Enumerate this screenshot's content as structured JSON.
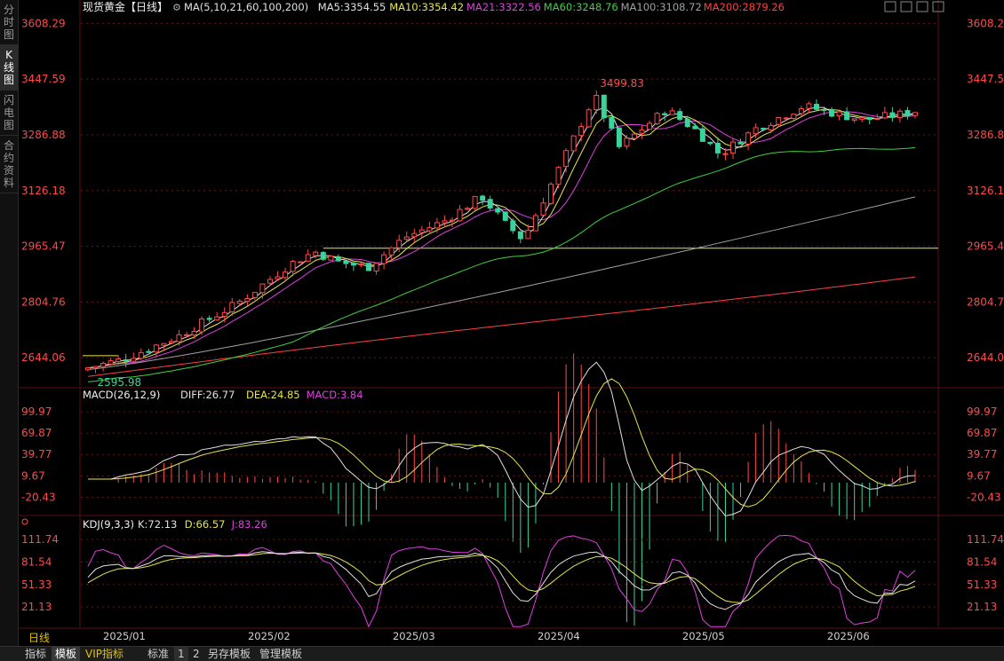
{
  "sidebar": {
    "tabs": [
      {
        "label": "分时图",
        "chars": [
          "分",
          "时",
          "图"
        ],
        "active": false
      },
      {
        "label": "K线图",
        "chars": [
          "K",
          "线",
          "图"
        ],
        "active": true
      },
      {
        "label": "闪电图",
        "chars": [
          "闪",
          "电",
          "图"
        ],
        "active": false
      },
      {
        "label": "合约资料",
        "chars": [
          "合",
          "约",
          "资",
          "料"
        ],
        "active": false
      }
    ]
  },
  "header": {
    "title": "现货黄金【日线】",
    "settings_icon": "settings-icon",
    "legend": [
      {
        "text": "MA(5,10,21,60,100,200)",
        "color": "#e0e0e0"
      },
      {
        "text": "MA5:3354.55",
        "color": "#e0e0e0"
      },
      {
        "text": "MA10:3354.42",
        "color": "#e6e64d"
      },
      {
        "text": "MA21:3322.56",
        "color": "#e040e0"
      },
      {
        "text": "MA60:3248.76",
        "color": "#40d040"
      },
      {
        "text": "MA100:3108.72",
        "color": "#a0a0a0"
      },
      {
        "text": "MA200:2879.26",
        "color": "#ff4040"
      }
    ],
    "window_buttons": [
      "grid-icon",
      "restore-icon",
      "maximize-icon",
      "window-icon"
    ]
  },
  "colors": {
    "up": "#ff4a4a",
    "down": "#39d39b",
    "grid": "#6e1414",
    "axis_text": "#ff4a4a",
    "hline": "#e6e64d"
  },
  "chart_data": [
    {
      "type": "candlestick",
      "title": "现货黄金【日线】",
      "y_ticks": [
        "3608.29",
        "3447.59",
        "3286.88",
        "3126.18",
        "2965.47",
        "2804.76",
        "2644.06"
      ],
      "ylim": [
        2560,
        3640
      ],
      "x_ticks": [
        "2025/01",
        "2025/02",
        "2025/03",
        "2025/04",
        "2025/05",
        "2025/06"
      ],
      "annotations": {
        "max": "3499.83",
        "min": "2595.98"
      },
      "horizontal_line": 2960,
      "grid": true,
      "series": [
        {
          "name": "MA5",
          "last": 3354.55,
          "color": "#e0e0e0"
        },
        {
          "name": "MA10",
          "last": 3354.42,
          "color": "#e6e64d"
        },
        {
          "name": "MA21",
          "last": 3322.56,
          "color": "#e040e0"
        },
        {
          "name": "MA60",
          "last": 3248.76,
          "color": "#40d040"
        },
        {
          "name": "MA100",
          "last": 3108.72,
          "color": "#a0a0a0"
        },
        {
          "name": "MA200",
          "last": 2879.26,
          "color": "#ff4040"
        }
      ]
    },
    {
      "type": "line",
      "title": "MACD(26,12,9)",
      "legend": [
        {
          "text": "DIFF:26.77",
          "color": "#e0e0e0"
        },
        {
          "text": "DEA:24.85",
          "color": "#e6e64d"
        },
        {
          "text": "MACD:3.84",
          "color": "#e040e0"
        }
      ],
      "y_ticks": [
        "99.97",
        "69.87",
        "39.77",
        "9.67",
        "-20.43"
      ],
      "ylim": [
        -45,
        115
      ]
    },
    {
      "type": "line",
      "title": "KDJ(9,3,3)",
      "legend": [
        {
          "text": "K:72.13",
          "color": "#e0e0e0"
        },
        {
          "text": "D:66.57",
          "color": "#e6e64d"
        },
        {
          "text": "J:83.26",
          "color": "#e040e0"
        }
      ],
      "y_ticks": [
        "111.74",
        "81.54",
        "51.33",
        "21.13"
      ],
      "ylim": [
        -6,
        126
      ]
    }
  ],
  "bottom": {
    "period": "日线",
    "buttons": [
      {
        "label": "指标",
        "active": false
      },
      {
        "label": "模板",
        "active": true
      },
      {
        "label": "VIP指标",
        "active": false,
        "vip": true
      },
      {
        "label": "标准",
        "active": false
      },
      {
        "label": "1",
        "active": false,
        "num": true
      },
      {
        "label": "2",
        "active": false
      },
      {
        "label": "另存模板",
        "active": false
      },
      {
        "label": "管理模板",
        "active": false
      }
    ]
  }
}
